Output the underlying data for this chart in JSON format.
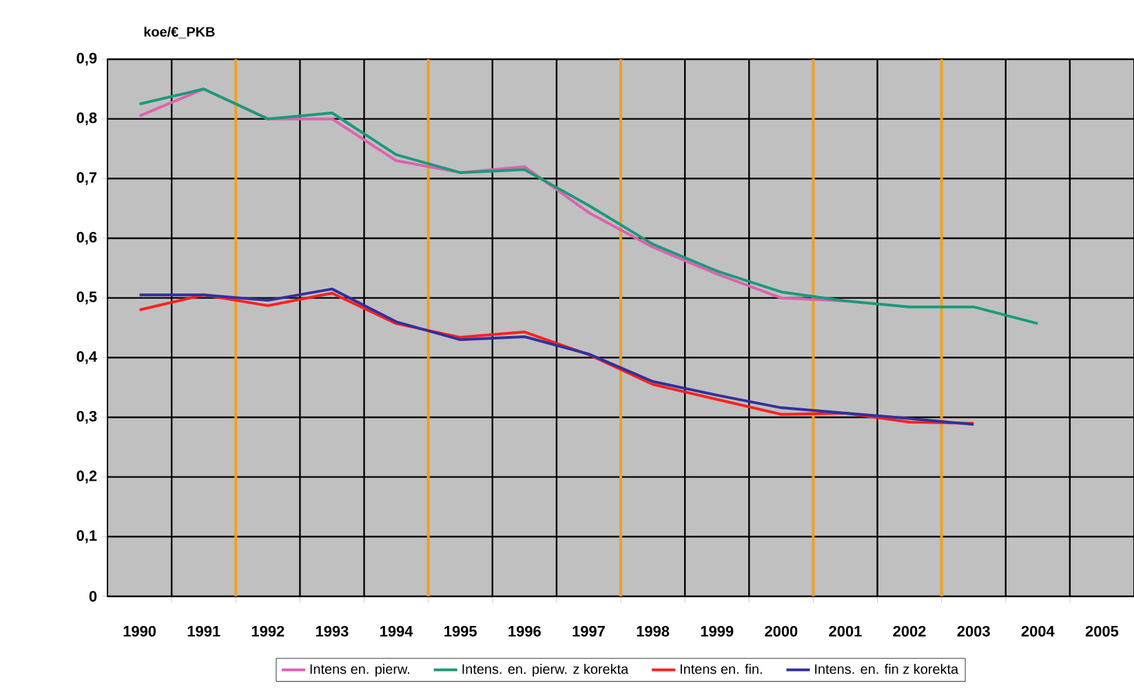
{
  "chart_data": {
    "type": "line",
    "ylabel": "koe/€_PKB",
    "x": [
      1990,
      1991,
      1992,
      1993,
      1994,
      1995,
      1996,
      1997,
      1998,
      1999,
      2000,
      2001,
      2002,
      2003,
      2004
    ],
    "xlim": [
      1989.5,
      2005.5
    ],
    "xticks": [
      1990,
      1991,
      1992,
      1993,
      1994,
      1995,
      1996,
      1997,
      1998,
      1999,
      2000,
      2001,
      2002,
      2003,
      2004,
      2005
    ],
    "ylim": [
      0,
      0.9
    ],
    "yticks": [
      0,
      {
        "value": 0.1,
        "label": "0,1"
      },
      {
        "value": 0.2,
        "label": "0,2"
      },
      {
        "value": 0.3,
        "label": "0,3"
      },
      {
        "value": 0.4,
        "label": "0,4"
      },
      {
        "value": 0.5,
        "label": "0,5"
      },
      {
        "value": 0.6,
        "label": "0,6"
      },
      {
        "value": 0.7,
        "label": "0,7"
      },
      {
        "value": 0.8,
        "label": "0,8"
      },
      {
        "value": 0.9,
        "label": "0,9"
      }
    ],
    "series": [
      {
        "name": "Intens en. pierw.",
        "color": "#e060b0",
        "values": [
          0.805,
          0.85,
          0.8,
          0.8,
          0.73,
          0.71,
          0.72,
          0.643,
          0.585,
          0.54,
          0.5,
          0.495,
          null,
          null,
          null
        ]
      },
      {
        "name": "Intens. en. pierw. z korekta",
        "color": "#1a9a7a",
        "values": [
          0.825,
          0.85,
          0.8,
          0.81,
          0.74,
          0.71,
          0.715,
          0.655,
          0.59,
          0.545,
          0.51,
          0.495,
          0.485,
          0.485,
          0.457
        ]
      },
      {
        "name": "Intens en. fin.",
        "color": "#ff2020",
        "values": [
          0.48,
          0.505,
          0.487,
          0.508,
          0.457,
          0.434,
          0.443,
          0.405,
          0.355,
          0.33,
          0.305,
          0.307,
          0.292,
          0.29,
          null
        ]
      },
      {
        "name": "Intens. en. fin z korekta",
        "color": "#3030a0",
        "values": [
          0.505,
          0.505,
          0.496,
          0.515,
          0.46,
          0.43,
          0.435,
          0.406,
          0.36,
          0.337,
          0.316,
          0.307,
          0.298,
          0.288,
          null
        ]
      }
    ],
    "ref_lines": [
      {
        "axis": "x",
        "value": 1991.5,
        "color": "#f0a020"
      },
      {
        "axis": "x",
        "value": 1994.5,
        "color": "#f0a020"
      },
      {
        "axis": "x",
        "value": 1997.5,
        "color": "#f0a020"
      },
      {
        "axis": "x",
        "value": 2000.5,
        "color": "#f0a020"
      },
      {
        "axis": "x",
        "value": 2002.5,
        "color": "#f0a020"
      }
    ],
    "grid": true,
    "legend": "bottom",
    "marker": "none",
    "line_style": "solid"
  }
}
